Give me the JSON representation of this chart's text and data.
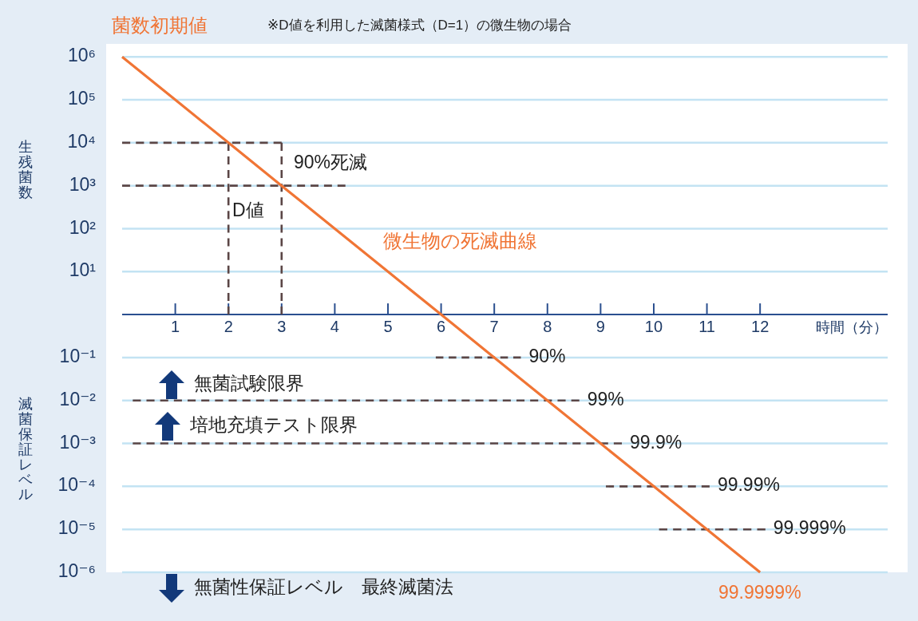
{
  "chart_data": {
    "type": "line",
    "title": "菌数初期値",
    "subtitle": "※D値を利用した滅菌様式（D=1）の微生物の場合",
    "xlabel": "時間（分）",
    "ylabel": "生残菌数",
    "log": "y",
    "grid": "y",
    "xlim": [
      0,
      14.4
    ],
    "xticks": [
      1,
      2,
      3,
      4,
      5,
      6,
      7,
      8,
      9,
      10,
      11,
      12
    ],
    "ylim": [
      1e-06,
      2000000.0
    ],
    "yticks": [
      {
        "value": 1000000.0,
        "label": "10⁶"
      },
      {
        "value": 100000.0,
        "label": "10⁵"
      },
      {
        "value": 10000.0,
        "label": "10⁴"
      },
      {
        "value": 1000.0,
        "label": "10³"
      },
      {
        "value": 100,
        "label": "10²"
      },
      {
        "value": 10,
        "label": "10¹"
      },
      {
        "value": 0.1,
        "label": "10⁻¹"
      },
      {
        "value": 0.01,
        "label": "10⁻²"
      },
      {
        "value": 0.001,
        "label": "10⁻³"
      },
      {
        "value": 0.0001,
        "label": "10⁻⁴"
      },
      {
        "value": 1e-05,
        "label": "10⁻⁵"
      },
      {
        "value": 1e-06,
        "label": "10⁻⁶"
      }
    ],
    "series": [
      {
        "name": "微生物の死滅曲線",
        "color": "#f07535",
        "line_style": "solid",
        "x": [
          0,
          1,
          2,
          3,
          4,
          5,
          6,
          7,
          8,
          9,
          10,
          11,
          12
        ],
        "values": [
          1000000.0,
          100000.0,
          10000.0,
          1000.0,
          100,
          10,
          1,
          0.1,
          0.01,
          0.001,
          0.0001,
          1e-05,
          1e-06
        ]
      },
      {
        "color": "#5b4646",
        "line_style": "dashed",
        "x": [
          0,
          3
        ],
        "values": [
          10000.0,
          10000.0
        ]
      },
      {
        "color": "#5b4646",
        "line_style": "dashed",
        "x": [
          2,
          2
        ],
        "values": [
          10000.0,
          1
        ]
      },
      {
        "color": "#5b4646",
        "line_style": "dashed",
        "x": [
          3,
          3
        ],
        "values": [
          10000.0,
          1
        ]
      },
      {
        "color": "#5b4646",
        "line_style": "dashed",
        "x": [
          0,
          4.2
        ],
        "values": [
          1000.0,
          1000.0
        ]
      },
      {
        "color": "#5b4646",
        "line_style": "dashed",
        "x": [
          5.9,
          7.5
        ],
        "values": [
          0.1,
          0.1
        ]
      },
      {
        "color": "#5b4646",
        "line_style": "dashed",
        "x": [
          0.2,
          8.6
        ],
        "values": [
          0.01,
          0.01
        ]
      },
      {
        "color": "#5b4646",
        "line_style": "dashed",
        "x": [
          0.2,
          9.4
        ],
        "values": [
          0.001,
          0.001
        ]
      },
      {
        "color": "#5b4646",
        "line_style": "dashed",
        "x": [
          9.1,
          11.05
        ],
        "values": [
          0.0001,
          0.0001
        ]
      },
      {
        "color": "#5b4646",
        "line_style": "dashed",
        "x": [
          10.1,
          12.1
        ],
        "values": [
          1e-05,
          1e-05
        ]
      }
    ],
    "annotations": [
      "無菌試験限界",
      "培地充填テスト限界",
      "無菌性保証レベル　最終滅菌法",
      "滅菌保証レベル",
      "90%死滅",
      "D値",
      "99.9999%",
      {
        "text": "90%",
        "x": 7.5,
        "y": 0.1
      },
      {
        "text": "99%",
        "x": 8.6,
        "y": 0.01
      },
      {
        "text": "99.9%",
        "x": 9.4,
        "y": 0.001
      },
      {
        "text": "99.99%",
        "x": 11.05,
        "y": 0.0001
      },
      {
        "text": "99.999%",
        "x": 12.1,
        "y": 1e-05
      }
    ]
  }
}
